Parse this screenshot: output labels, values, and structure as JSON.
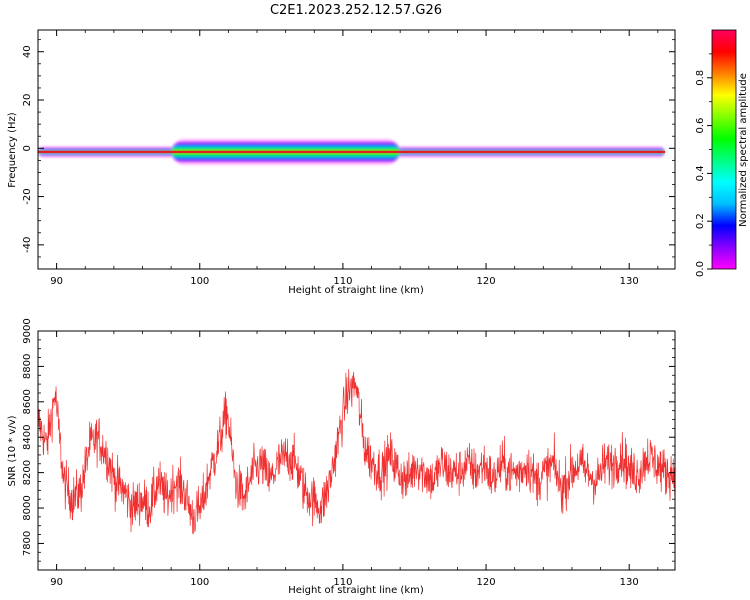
{
  "figure_title": "C2E1.2023.252.12.57.G26",
  "colors": {
    "snr_line": "#f03030",
    "spectrogram_core": "#e02020"
  },
  "chart_data": [
    {
      "type": "heatmap",
      "xlabel": "Height of straight line (km)",
      "ylabel": "Frequency (Hz)",
      "xlim": [
        88.7,
        133.2
      ],
      "ylim": [
        -50,
        49
      ],
      "x_ticks": [
        90,
        100,
        110,
        120,
        130
      ],
      "y_ticks": [
        -40,
        -20,
        0,
        20,
        40
      ],
      "grid": false,
      "data_x_range": [
        88.7,
        132.5
      ],
      "dominant_frequency_hz": -1.5,
      "colorbar": {
        "label": "Normalized spectral amplitude",
        "range": [
          0,
          1
        ],
        "ticks": [
          0.0,
          0.2,
          0.4,
          0.6,
          0.8
        ],
        "colormap": [
          "#ff00ff",
          "#8800ff",
          "#0000ff",
          "#00bfff",
          "#00ffff",
          "#00ff80",
          "#00ff00",
          "#80ff00",
          "#ffff00",
          "#ff8000",
          "#ff0000",
          "#ff0060"
        ]
      }
    },
    {
      "type": "line",
      "xlabel": "Height of straight line (km)",
      "ylabel": "SNR (10 * v/v)",
      "xlim": [
        88.7,
        133.2
      ],
      "ylim": [
        7650,
        9000
      ],
      "x_ticks": [
        90,
        100,
        110,
        120,
        130
      ],
      "y_ticks": [
        7800,
        8000,
        8200,
        8400,
        8600,
        8800,
        9000
      ],
      "grid": false,
      "series": [
        {
          "x": [
            88.7,
            89.3,
            89.9,
            90.5,
            91.1,
            91.7,
            92.3,
            92.9,
            93.5,
            94.1,
            94.7,
            95.3,
            95.9,
            96.5,
            97.1,
            97.7,
            98.3,
            98.9,
            99.5,
            100.1,
            100.7,
            101.3,
            101.9,
            102.5,
            103.1,
            103.7,
            104.3,
            104.9,
            105.5,
            106.1,
            106.7,
            107.3,
            107.9,
            108.5,
            109.1,
            109.7,
            110.3,
            110.9,
            111.5,
            112.1,
            112.7,
            113.3,
            113.9,
            114.5,
            115.1,
            115.7,
            116.3,
            116.9,
            117.5,
            118.1,
            118.7,
            119.3,
            119.9,
            120.5,
            121.1,
            121.7,
            122.3,
            122.9,
            123.5,
            124.1,
            124.7,
            125.3,
            125.9,
            126.5,
            127.1,
            127.7,
            128.3,
            128.9,
            129.5,
            130.1,
            130.7,
            131.3,
            131.9,
            132.5,
            133.2
          ],
          "values": [
            8500,
            8350,
            8650,
            8150,
            8050,
            8100,
            8350,
            8400,
            8300,
            8150,
            8100,
            8000,
            8050,
            8000,
            8150,
            8050,
            8150,
            8100,
            7950,
            8000,
            8200,
            8350,
            8550,
            8150,
            8050,
            8200,
            8250,
            8150,
            8250,
            8300,
            8250,
            8100,
            8050,
            8000,
            8150,
            8400,
            8650,
            8700,
            8350,
            8250,
            8200,
            8300,
            8200,
            8150,
            8250,
            8200,
            8150,
            8250,
            8200,
            8200,
            8250,
            8200,
            8250,
            8150,
            8250,
            8200,
            8200,
            8250,
            8150,
            8200,
            8250,
            8100,
            8200,
            8250,
            8200,
            8150,
            8250,
            8250,
            8300,
            8200,
            8200,
            8300,
            8250,
            8200,
            8200
          ],
          "noise_amplitude": 120
        }
      ]
    }
  ]
}
